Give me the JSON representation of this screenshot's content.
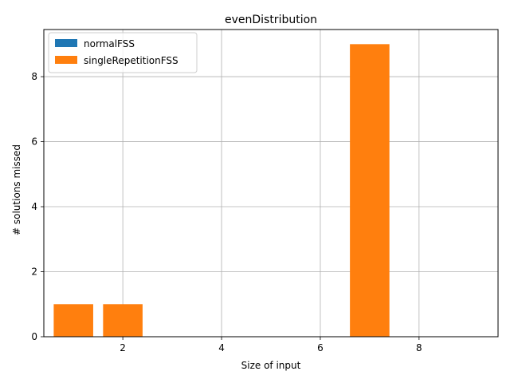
{
  "chart_data": {
    "type": "bar",
    "title": "evenDistribution",
    "xlabel": "Size of input",
    "ylabel": "# solutions missed",
    "x": [
      1,
      2,
      3,
      4,
      5,
      6,
      7,
      8,
      9
    ],
    "series": [
      {
        "name": "normalFSS",
        "color": "#1f77b4",
        "values": [
          0,
          0,
          0,
          0,
          0,
          0,
          0,
          0,
          0
        ]
      },
      {
        "name": "singleRepetitionFSS",
        "color": "#ff7f0e",
        "values": [
          1,
          1,
          0,
          0,
          0,
          0,
          9,
          0,
          0
        ]
      }
    ],
    "xlim": [
      0.4,
      9.6
    ],
    "ylim": [
      0,
      9.45
    ],
    "xticks": [
      2,
      4,
      6,
      8
    ],
    "yticks": [
      0,
      2,
      4,
      6,
      8
    ],
    "grid": true,
    "legend": "upper-left"
  }
}
